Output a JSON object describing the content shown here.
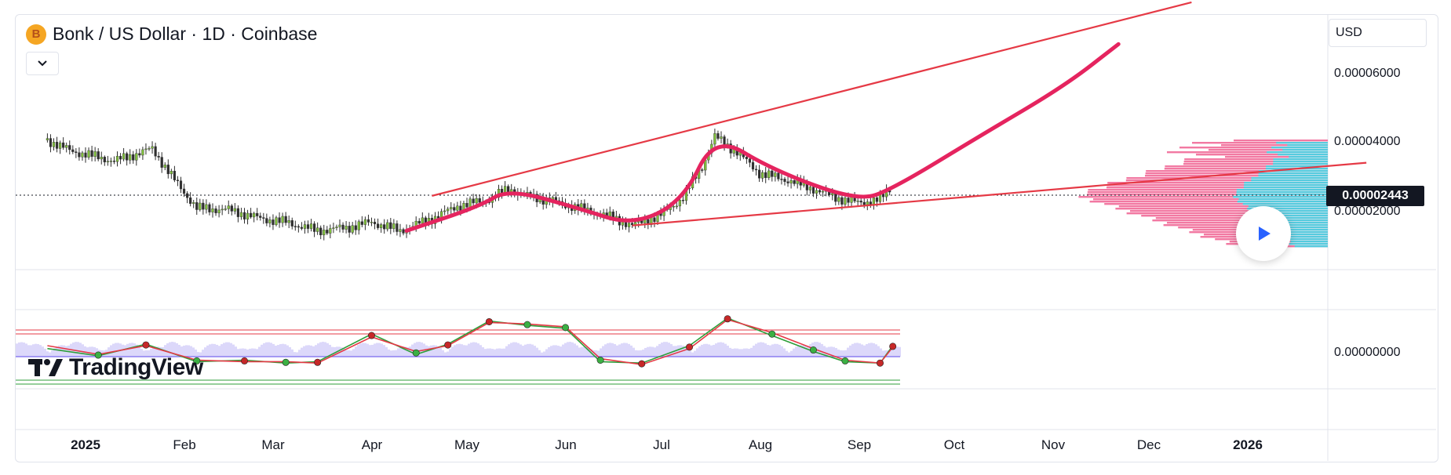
{
  "header": {
    "title": "Bonk / US Dollar · 1D · Coinbase",
    "currency": "USD"
  },
  "logo": {
    "text": "TradingView"
  },
  "colors": {
    "trendline": "#e53945",
    "projection": "#e5245f",
    "candle": "#2e2e2e",
    "oscillator_fast": "#2e9e3a",
    "oscillator_slow": "#e53945",
    "oscillator_band": "#8c7ff0",
    "volume_profile_up": "#f06292",
    "volume_profile_value_area": "#4dd0e1"
  },
  "icons": {
    "play": "play-icon",
    "collapse": "chevron-down-icon",
    "coin": "bonk-coin-icon"
  },
  "chart_data": [
    {
      "type": "line",
      "title": "Bonk / US Dollar · 1D · Coinbase",
      "ylabel": "USD",
      "yticks": [
        "0.00006000",
        "0.00004000",
        "0.00002000"
      ],
      "ylim": [
        5e-06,
        7.75e-05
      ],
      "last_price": "0.00002443",
      "x_ticks": [
        "2025",
        "Feb",
        "Mar",
        "Apr",
        "May",
        "Jun",
        "Jul",
        "Aug",
        "Sep",
        "Oct",
        "Nov",
        "Dec",
        "2026"
      ],
      "grid": true,
      "series": [
        {
          "values_by_date": [
            [
              "2024-12-20",
              3.85e-05
            ],
            [
              "2024-12-27",
              3.55e-05
            ],
            [
              "2025-01-03",
              3.4e-05
            ],
            [
              "2025-01-10",
              3.25e-05
            ],
            [
              "2025-01-17",
              3.45e-05
            ],
            [
              "2025-01-22",
              3.6e-05
            ],
            [
              "2025-01-29",
              2.7e-05
            ],
            [
              "2025-02-05",
              1.9e-05
            ],
            [
              "2025-02-15",
              1.85e-05
            ],
            [
              "2025-02-25",
              1.6e-05
            ],
            [
              "2025-03-05",
              1.5e-05
            ],
            [
              "2025-03-15",
              1.25e-05
            ],
            [
              "2025-03-25",
              1.35e-05
            ],
            [
              "2025-04-01",
              1.5e-05
            ],
            [
              "2025-04-10",
              1.25e-05
            ],
            [
              "2025-04-20",
              1.6e-05
            ],
            [
              "2025-04-28",
              1.95e-05
            ],
            [
              "2025-05-08",
              2.15e-05
            ],
            [
              "2025-05-14",
              2.45e-05
            ],
            [
              "2025-05-20",
              2.25e-05
            ],
            [
              "2025-05-28",
              2.1e-05
            ],
            [
              "2025-06-05",
              1.9e-05
            ],
            [
              "2025-06-15",
              1.65e-05
            ],
            [
              "2025-06-22",
              1.4e-05
            ],
            [
              "2025-07-01",
              1.7e-05
            ],
            [
              "2025-07-08",
              2.2e-05
            ],
            [
              "2025-07-14",
              3.1e-05
            ],
            [
              "2025-07-18",
              3.95e-05
            ],
            [
              "2025-07-25",
              3.5e-05
            ],
            [
              "2025-08-01",
              2.9e-05
            ],
            [
              "2025-08-10",
              2.7e-05
            ],
            [
              "2025-08-18",
              2.45e-05
            ],
            [
              "2025-08-25",
              2.2e-05
            ],
            [
              "2025-09-01",
              2.05e-05
            ],
            [
              "2025-09-08",
              2.15e-05
            ],
            [
              "2025-09-11",
              2.44e-05
            ]
          ]
        },
        {
          "values_by_date": [
            [
              "2025-04-12",
              1.25e-05
            ],
            [
              "2025-05-05",
              1.95e-05
            ],
            [
              "2025-05-14",
              2.45e-05
            ],
            [
              "2025-06-05",
              1.9e-05
            ],
            [
              "2025-06-22",
              1.4e-05
            ],
            [
              "2025-07-08",
              2.1e-05
            ],
            [
              "2025-07-18",
              4e-05
            ],
            [
              "2025-08-05",
              3e-05
            ],
            [
              "2025-09-01",
              2.1e-05
            ],
            [
              "2025-09-12",
              2.45e-05
            ],
            [
              "2025-10-10",
              4e-05
            ],
            [
              "2025-11-05",
              5.4e-05
            ],
            [
              "2025-11-22",
              6.6e-05
            ]
          ]
        }
      ],
      "trendlines": [
        {
          "from": [
            "2025-04-20",
            2.25e-05
          ],
          "to": [
            "2025-12-15",
            7.8e-05
          ]
        },
        {
          "from": [
            "2025-06-22",
            1.4e-05
          ],
          "to": [
            "2026-02-08",
            3.2e-05
          ]
        }
      ]
    },
    {
      "type": "line",
      "yticks": [
        "0.00000000"
      ],
      "series": [
        {
          "values_by_date": [
            [
              "2024-12-20",
              -10
            ],
            [
              "2025-01-05",
              -35
            ],
            [
              "2025-01-20",
              5
            ],
            [
              "2025-02-05",
              -55
            ],
            [
              "2025-02-20",
              -50
            ],
            [
              "2025-03-05",
              -60
            ],
            [
              "2025-03-15",
              -55
            ],
            [
              "2025-04-01",
              40
            ],
            [
              "2025-04-15",
              -30
            ],
            [
              "2025-04-25",
              5
            ],
            [
              "2025-05-08",
              85
            ],
            [
              "2025-05-20",
              70
            ],
            [
              "2025-06-01",
              60
            ],
            [
              "2025-06-12",
              -55
            ],
            [
              "2025-06-25",
              -60
            ],
            [
              "2025-07-10",
              0
            ],
            [
              "2025-07-22",
              95
            ],
            [
              "2025-08-05",
              35
            ],
            [
              "2025-08-18",
              -20
            ],
            [
              "2025-08-28",
              -55
            ],
            [
              "2025-09-08",
              -60
            ],
            [
              "2025-09-12",
              0
            ]
          ]
        },
        {
          "values_by_date": [
            [
              "2024-12-20",
              0
            ],
            [
              "2025-01-05",
              -30
            ],
            [
              "2025-01-20",
              0
            ],
            [
              "2025-02-05",
              -50
            ],
            [
              "2025-02-20",
              -55
            ],
            [
              "2025-03-05",
              -55
            ],
            [
              "2025-03-15",
              -60
            ],
            [
              "2025-04-01",
              30
            ],
            [
              "2025-04-15",
              -20
            ],
            [
              "2025-04-25",
              0
            ],
            [
              "2025-05-08",
              80
            ],
            [
              "2025-05-20",
              75
            ],
            [
              "2025-06-01",
              65
            ],
            [
              "2025-06-12",
              -45
            ],
            [
              "2025-06-25",
              -65
            ],
            [
              "2025-07-10",
              -10
            ],
            [
              "2025-07-22",
              90
            ],
            [
              "2025-08-05",
              45
            ],
            [
              "2025-08-18",
              -10
            ],
            [
              "2025-08-28",
              -50
            ],
            [
              "2025-09-08",
              -60
            ],
            [
              "2025-09-12",
              -5
            ]
          ]
        }
      ]
    }
  ]
}
